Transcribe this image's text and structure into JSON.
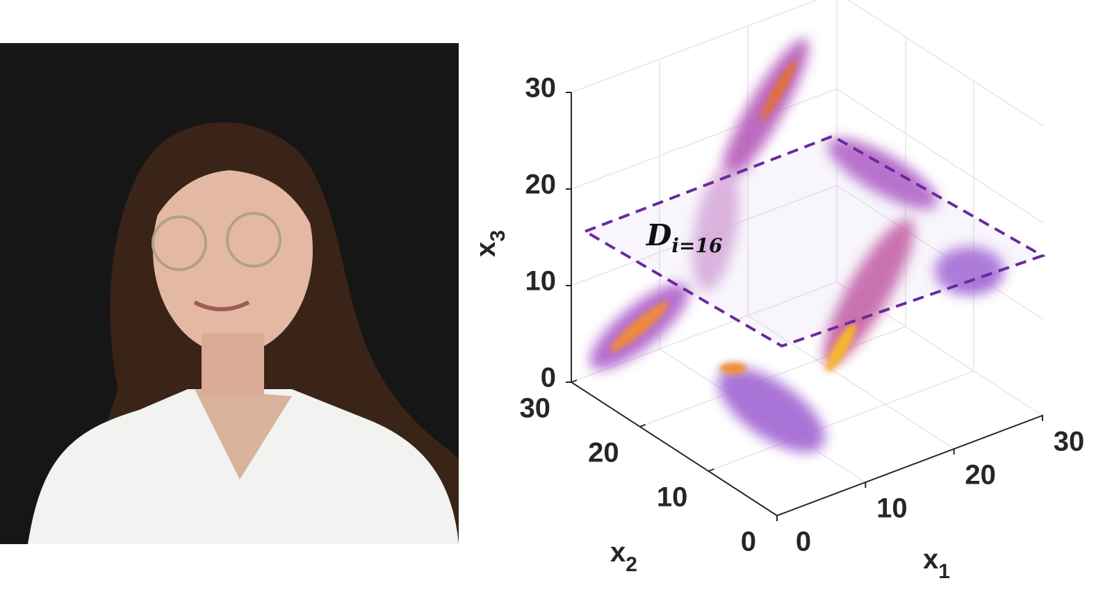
{
  "plot": {
    "axes": {
      "x1": {
        "label": "x",
        "subscript": "1",
        "ticks": [
          "0",
          "10",
          "20",
          "30"
        ]
      },
      "x2": {
        "label": "x",
        "subscript": "2",
        "ticks": [
          "0",
          "10",
          "20",
          "30"
        ]
      },
      "x3": {
        "label": "x",
        "subscript": "3",
        "ticks": [
          "0",
          "10",
          "20",
          "30"
        ]
      }
    },
    "annotation": {
      "symbol": "D",
      "subscript": "i=16"
    }
  }
}
